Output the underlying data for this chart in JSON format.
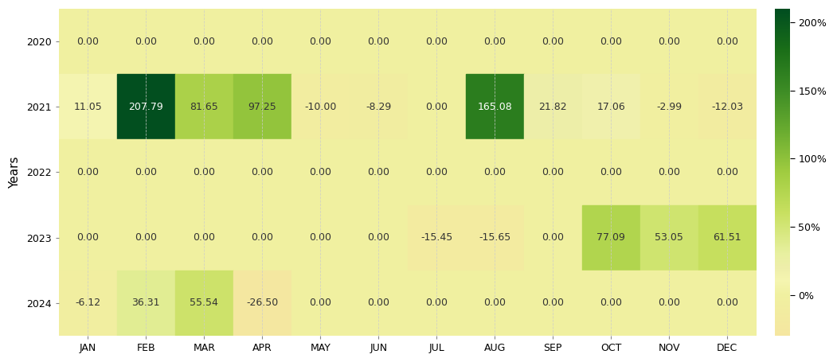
{
  "years": [
    "2020",
    "2021",
    "2022",
    "2023",
    "2024"
  ],
  "months": [
    "JAN",
    "FEB",
    "MAR",
    "APR",
    "MAY",
    "JUN",
    "JUL",
    "AUG",
    "SEP",
    "OCT",
    "NOV",
    "DEC"
  ],
  "values": [
    [
      0.0,
      0.0,
      0.0,
      0.0,
      0.0,
      0.0,
      0.0,
      0.0,
      0.0,
      0.0,
      0.0,
      0.0
    ],
    [
      11.05,
      207.79,
      81.65,
      97.25,
      -10.0,
      -8.29,
      0.0,
      165.08,
      21.82,
      17.06,
      -2.99,
      -12.03
    ],
    [
      0.0,
      0.0,
      0.0,
      0.0,
      0.0,
      0.0,
      0.0,
      0.0,
      0.0,
      0.0,
      0.0,
      0.0
    ],
    [
      0.0,
      0.0,
      0.0,
      0.0,
      0.0,
      0.0,
      -15.45,
      -15.65,
      0.0,
      77.09,
      53.05,
      61.51
    ],
    [
      -6.12,
      36.31,
      55.54,
      -26.5,
      0.0,
      0.0,
      0.0,
      0.0,
      0.0,
      0.0,
      0.0,
      0.0
    ]
  ],
  "vmin": -30,
  "vmax": 210,
  "cbar_ticks": [
    0,
    50,
    100,
    150,
    200
  ],
  "cbar_labels": [
    "0%",
    "50%",
    "100%",
    "150%",
    "200%"
  ],
  "ylabel": "Years",
  "figsize": [
    10.51,
    4.55
  ],
  "dpi": 100,
  "background_color": "#ffffff",
  "text_color_light": "#ffffff",
  "text_color_dark": "#333333",
  "cell_fontsize": 9,
  "axis_fontsize": 9,
  "ylabel_fontsize": 11,
  "colormap_nodes": [
    [
      0.0,
      "#f5e6a0"
    ],
    [
      0.125,
      "#f0f0a0"
    ],
    [
      0.167,
      "#f5f5b0"
    ],
    [
      0.208,
      "#eeeeaa"
    ],
    [
      0.25,
      "#e8f0a0"
    ],
    [
      0.375,
      "#c8e060"
    ],
    [
      0.5,
      "#a0cc40"
    ],
    [
      0.625,
      "#6aac30"
    ],
    [
      0.75,
      "#3d8c25"
    ],
    [
      0.875,
      "#1a6e18"
    ],
    [
      1.0,
      "#004d20"
    ]
  ]
}
